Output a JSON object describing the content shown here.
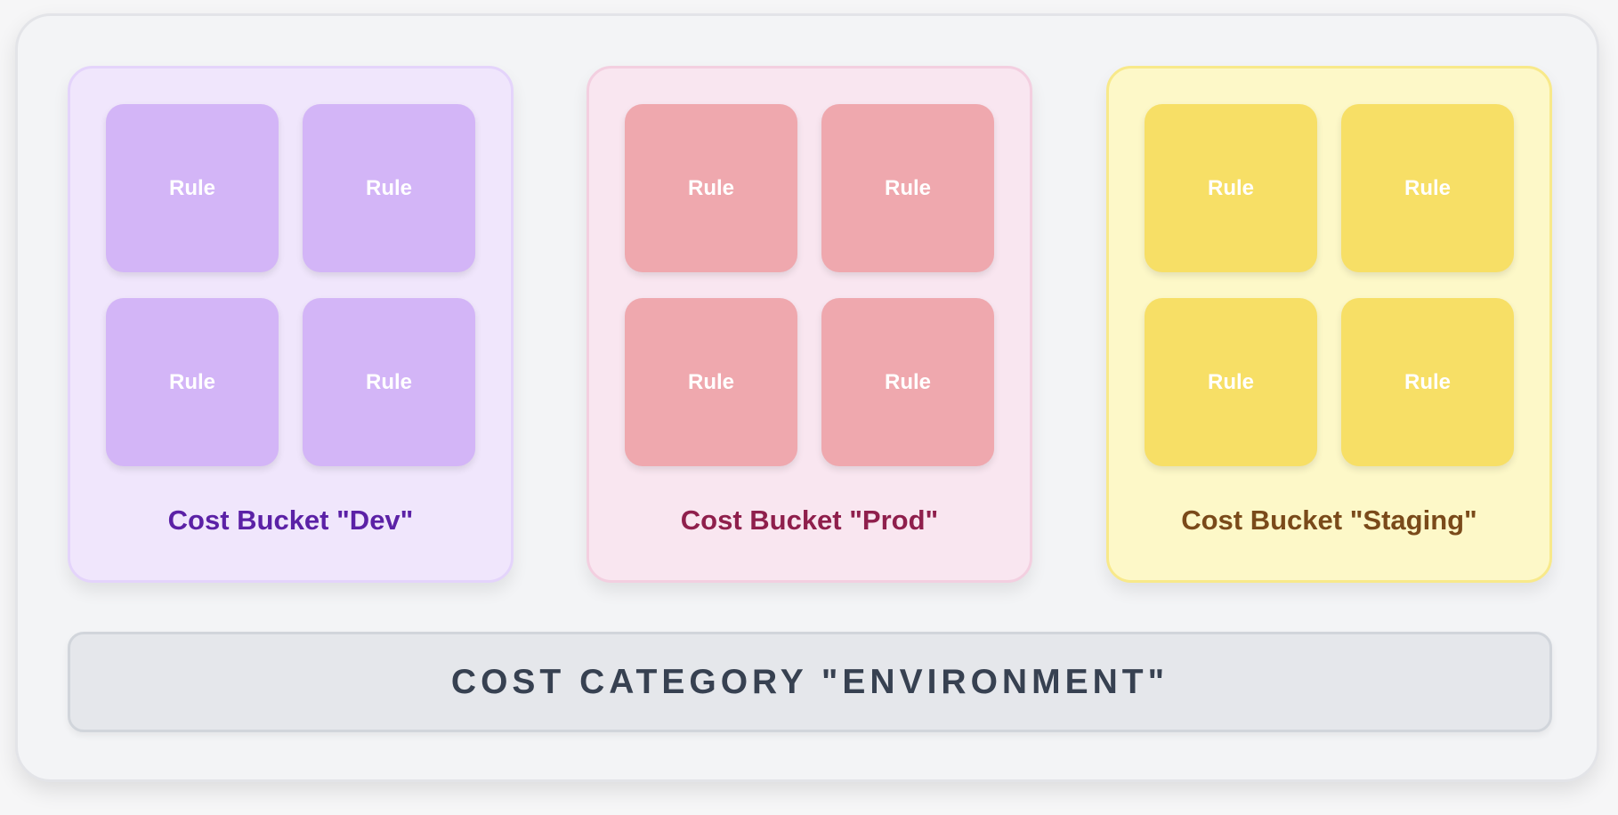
{
  "buckets": [
    {
      "label": "Cost Bucket \"Dev\"",
      "rules": [
        "Rule",
        "Rule",
        "Rule",
        "Rule"
      ],
      "colors": {
        "bg": "#f0e6fc",
        "border": "#e4d4fb",
        "rule": "#d3b5f7",
        "text": "#5b21a6"
      }
    },
    {
      "label": "Cost Bucket \"Prod\"",
      "rules": [
        "Rule",
        "Rule",
        "Rule",
        "Rule"
      ],
      "colors": {
        "bg": "#f9e6f0",
        "border": "#f3cfe0",
        "rule": "#efa8ae",
        "text": "#8f1f4c"
      }
    },
    {
      "label": "Cost Bucket \"Staging\"",
      "rules": [
        "Rule",
        "Rule",
        "Rule",
        "Rule"
      ],
      "colors": {
        "bg": "#fdf8c8",
        "border": "#f8e98a",
        "rule": "#f7df66",
        "text": "#7a4a1a"
      }
    }
  ],
  "category": {
    "label": "COST CATEGORY \"ENVIRONMENT\""
  }
}
